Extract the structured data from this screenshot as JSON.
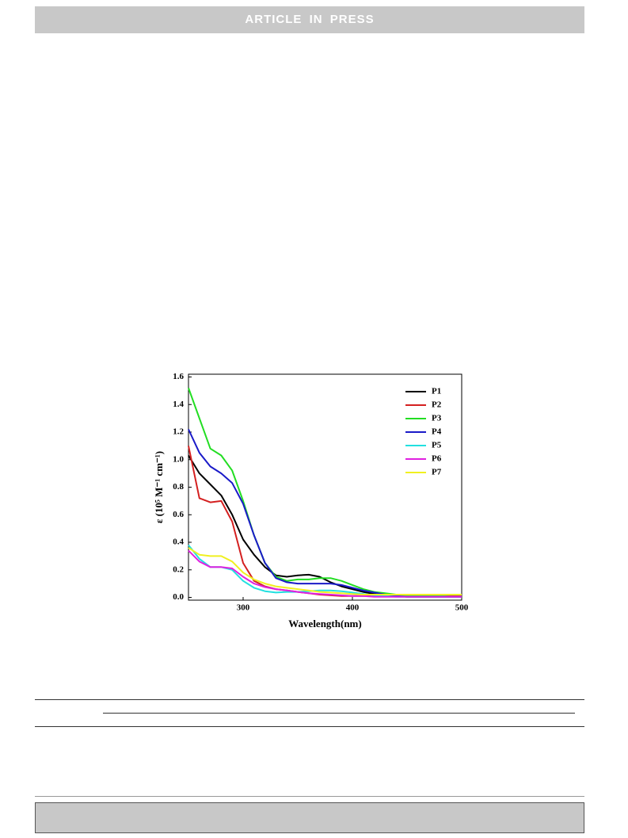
{
  "header": "ARTICLE IN PRESS",
  "chart_data": {
    "type": "line",
    "xlabel": "Wavelength(nm)",
    "ylabel": "ε (10⁵ M⁻¹ cm⁻¹)",
    "x": [
      250,
      260,
      270,
      280,
      290,
      300,
      310,
      320,
      330,
      340,
      350,
      360,
      370,
      380,
      390,
      400,
      410,
      420,
      430,
      440,
      450,
      460,
      470,
      480,
      490,
      500
    ],
    "xlim": [
      250,
      500
    ],
    "xticks": [
      300,
      400,
      500
    ],
    "ylim": [
      -0.02,
      1.62
    ],
    "yticks": [
      {
        "value": 0,
        "label": "0.0"
      },
      0.2,
      0.4,
      0.6,
      0.8,
      {
        "value": 1,
        "label": "1.0"
      },
      1.2,
      1.4,
      1.6
    ],
    "legend": "upper-right",
    "series": [
      {
        "name": "P1",
        "color": "#000000",
        "values": [
          1.03,
          0.9,
          0.82,
          0.74,
          0.6,
          0.42,
          0.31,
          0.22,
          0.16,
          0.15,
          0.16,
          0.165,
          0.15,
          0.11,
          0.08,
          0.06,
          0.04,
          0.025,
          0.015,
          0.01,
          0.005,
          0.005,
          0.005,
          0.005,
          0.005,
          0.005
        ]
      },
      {
        "name": "P2",
        "color": "#d42020",
        "values": [
          1.1,
          0.72,
          0.69,
          0.7,
          0.55,
          0.25,
          0.12,
          0.08,
          0.06,
          0.05,
          0.04,
          0.03,
          0.02,
          0.015,
          0.01,
          0.01,
          0.01,
          0.01,
          0.01,
          0.01,
          0.01,
          0.01,
          0.01,
          0.01,
          0.01,
          0.01
        ]
      },
      {
        "name": "P3",
        "color": "#22dd22",
        "values": [
          1.52,
          1.3,
          1.08,
          1.03,
          0.92,
          0.7,
          0.45,
          0.25,
          0.15,
          0.12,
          0.13,
          0.13,
          0.14,
          0.14,
          0.12,
          0.09,
          0.06,
          0.04,
          0.03,
          0.02,
          0.015,
          0.015,
          0.015,
          0.015,
          0.02,
          0.02
        ]
      },
      {
        "name": "P4",
        "color": "#1a1ac8",
        "values": [
          1.22,
          1.05,
          0.95,
          0.9,
          0.83,
          0.68,
          0.45,
          0.25,
          0.14,
          0.11,
          0.1,
          0.1,
          0.1,
          0.1,
          0.09,
          0.07,
          0.05,
          0.035,
          0.02,
          0.01,
          0.005,
          0.005,
          0.005,
          0.005,
          0.005,
          0.005
        ]
      },
      {
        "name": "P5",
        "color": "#22e0e0",
        "values": [
          0.38,
          0.28,
          0.22,
          0.22,
          0.2,
          0.12,
          0.07,
          0.045,
          0.035,
          0.04,
          0.04,
          0.045,
          0.05,
          0.05,
          0.045,
          0.035,
          0.025,
          0.015,
          0.01,
          0.005,
          0.005,
          0.005,
          0.005,
          0.005,
          0.005,
          0.005
        ]
      },
      {
        "name": "P6",
        "color": "#e020e0",
        "values": [
          0.34,
          0.26,
          0.22,
          0.22,
          0.21,
          0.15,
          0.1,
          0.075,
          0.06,
          0.05,
          0.04,
          0.03,
          0.025,
          0.02,
          0.015,
          0.01,
          0.01,
          0.005,
          0.005,
          0.005,
          0.005,
          0.005,
          0.005,
          0.005,
          0.005,
          0.005
        ]
      },
      {
        "name": "P7",
        "color": "#f0f020",
        "values": [
          0.36,
          0.31,
          0.3,
          0.3,
          0.26,
          0.18,
          0.13,
          0.1,
          0.08,
          0.07,
          0.06,
          0.05,
          0.04,
          0.035,
          0.03,
          0.025,
          0.02,
          0.02,
          0.02,
          0.02,
          0.02,
          0.02,
          0.02,
          0.02,
          0.02,
          0.02
        ]
      }
    ]
  }
}
